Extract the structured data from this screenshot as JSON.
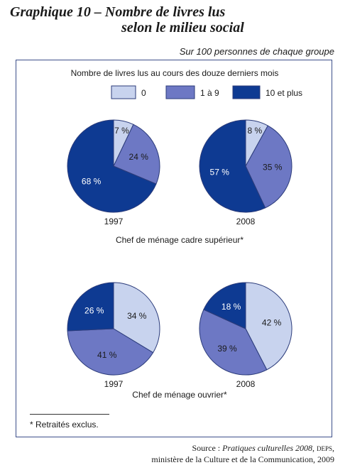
{
  "header": {
    "title_line1": "Graphique 10 – Nombre de livres lus",
    "title_line2": "selon le milieu social",
    "subtitle": "Sur 100 personnes de chaque groupe"
  },
  "footer": {
    "footnote": "* Retraités exclus.",
    "source_prefix": "Source : ",
    "source_title": "Pratiques culturelles 2008",
    "source_sep": ", ",
    "source_org_abbr": "DEPS",
    "source_suffix": ",",
    "source_line2": "ministère de la Culture et de la Communication, 2009"
  },
  "chart_data": {
    "type": "pie",
    "title": "Nombre de livres lus au cours des douze derniers mois",
    "legend": [
      {
        "label": "0",
        "color": "#c8d3ee"
      },
      {
        "label": "1 à 9",
        "color": "#6d78c4"
      },
      {
        "label": "10 et plus",
        "color": "#0e3a92"
      }
    ],
    "groups": [
      {
        "title": "Chef de ménage cadre supérieur*",
        "pies": [
          {
            "year": "1997",
            "values": [
              7,
              24,
              68
            ],
            "labels": [
              "7 %",
              "24 %",
              "68 %"
            ]
          },
          {
            "year": "2008",
            "values": [
              8,
              35,
              57
            ],
            "labels": [
              "8 %",
              "35 %",
              "57 %"
            ]
          }
        ]
      },
      {
        "title": "Chef de ménage ouvrier*",
        "pies": [
          {
            "year": "1997",
            "values": [
              34,
              41,
              26
            ],
            "labels": [
              "34 %",
              "41 %",
              "26 %"
            ]
          },
          {
            "year": "2008",
            "values": [
              42,
              39,
              18
            ],
            "labels": [
              "42 %",
              "39 %",
              "18 %"
            ]
          }
        ]
      }
    ]
  }
}
